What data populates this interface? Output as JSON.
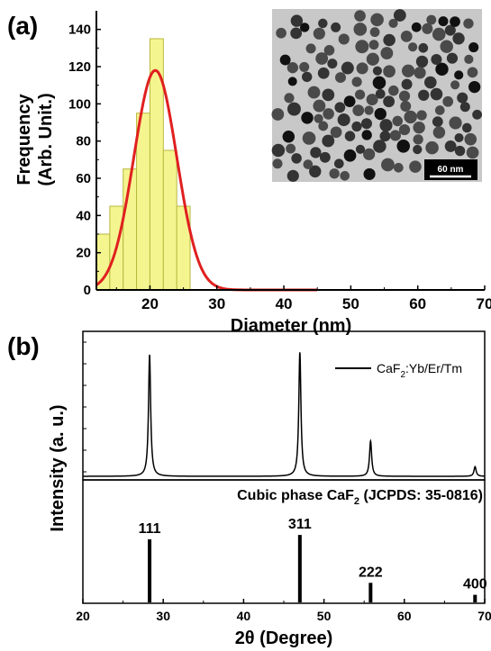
{
  "colors": {
    "bar_fill": "#f5f590",
    "bar_stroke": "#b8b840",
    "fit_curve": "#e02020",
    "axis": "#000000",
    "tem_background": "#c8c8c8",
    "particle": "#3a3a3a"
  },
  "panel_a": {
    "label": "(a)",
    "inset_scale_label": "60 nm",
    "chart_data": {
      "type": "bar",
      "xlabel": "Diameter (nm)",
      "ylabel_line1": "Frequency",
      "ylabel_line2": "(Arb. Unit.)",
      "xlim": [
        12,
        70
      ],
      "ylim": [
        0,
        150
      ],
      "xticks": [
        20,
        30,
        40,
        50,
        60,
        70
      ],
      "yticks": [
        0,
        20,
        40,
        60,
        80,
        100,
        120,
        140
      ],
      "bin_width": 2,
      "bin_centers": [
        13,
        15,
        17,
        19,
        21,
        23,
        25
      ],
      "values": [
        30,
        45,
        65,
        95,
        135,
        75,
        45
      ],
      "fit_curve": {
        "type": "gaussian",
        "peak": 118,
        "center": 20.8,
        "sigma": 3.2,
        "x_range": [
          12,
          45
        ]
      }
    }
  },
  "panel_b": {
    "label": "(b)",
    "ylabel": "Intensity (a. u.)",
    "xlabel": "2θ (Degree)",
    "xlim": [
      20,
      70
    ],
    "xticks": [
      20,
      30,
      40,
      50,
      60,
      70
    ],
    "xtick_labels": [
      "20",
      "30",
      "40",
      "50",
      "60",
      "70"
    ],
    "legend": {
      "prefix": "CaF",
      "sub": "2",
      "suffix": ":Yb/Er/Tm"
    },
    "reference_title": {
      "prefix": "Cubic phase CaF",
      "sub": "2",
      "suffix": " (JCPDS: 35-0816)"
    },
    "chart_data": {
      "type": "line",
      "series": [
        {
          "name": "CaF2:Yb/Er/Tm",
          "peaks": [
            {
              "x": 28.3,
              "height": 1.0
            },
            {
              "x": 47.0,
              "height": 1.02
            },
            {
              "x": 55.8,
              "height": 0.29
            },
            {
              "x": 68.8,
              "height": 0.08
            }
          ],
          "baseline": 0.0
        }
      ],
      "reference_peaks": [
        {
          "x": 28.3,
          "label": "111",
          "intensity": 1.0
        },
        {
          "x": 47.0,
          "label": "311",
          "intensity": 1.07
        },
        {
          "x": 55.8,
          "label": "222",
          "intensity": 0.31
        },
        {
          "x": 68.8,
          "label": "400",
          "intensity": 0.12
        }
      ]
    }
  }
}
